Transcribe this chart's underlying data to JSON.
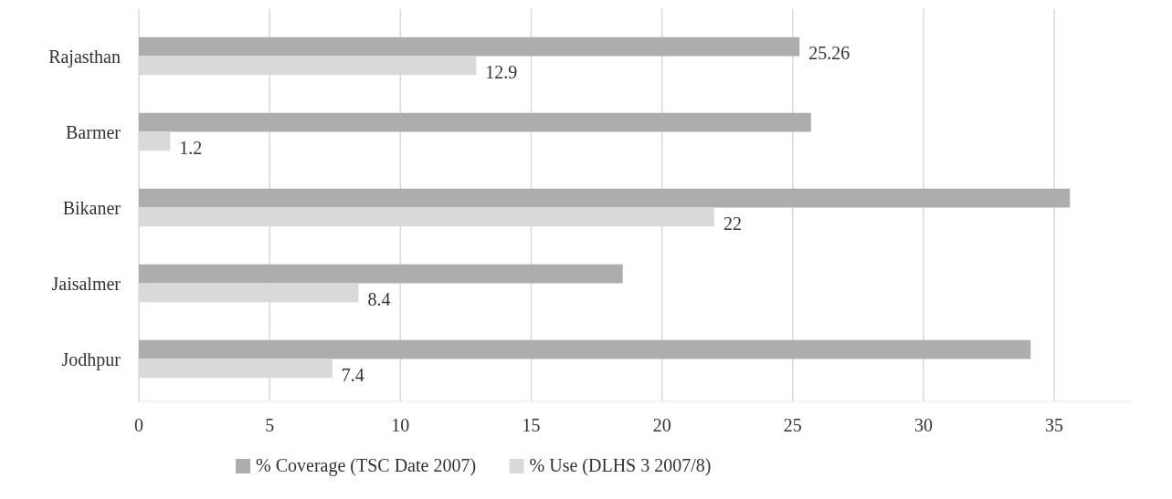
{
  "chart_data": {
    "type": "bar",
    "orientation": "horizontal",
    "categories": [
      "Rajasthan",
      "Barmer",
      "Bikaner",
      "Jaisalmer",
      "Jodhpur"
    ],
    "series": [
      {
        "name": "% Coverage (TSC Date 2007)",
        "color": "#adadad",
        "values": [
          25.26,
          25.7,
          35.6,
          18.5,
          34.1
        ],
        "value_labels": [
          "25.26",
          null,
          null,
          null,
          null
        ]
      },
      {
        "name": "% Use (DLHS 3 2007/8)",
        "color": "#d9d9d9",
        "values": [
          12.9,
          1.2,
          22,
          8.4,
          7.4
        ],
        "value_labels": [
          "12.9",
          "1.2",
          "22",
          "8.4",
          "7.4"
        ]
      }
    ],
    "xlim": [
      0,
      38
    ],
    "xticks": [
      0,
      5,
      10,
      15,
      20,
      25,
      30,
      35
    ],
    "grid": "x",
    "legend": "bottom"
  }
}
